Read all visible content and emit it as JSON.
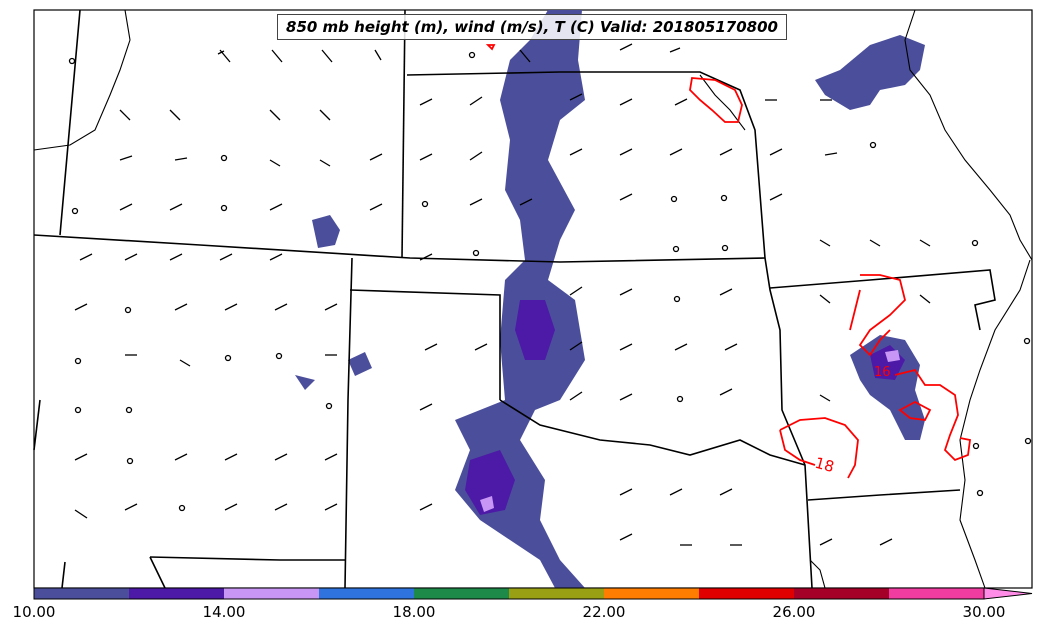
{
  "title": "850 mb height (m), wind (m/s), T (C) Valid: 201805170800",
  "contour_labels": [
    "18",
    "16"
  ],
  "colorbar": {
    "colors": [
      "#4b4f9b",
      "#4c1aa6",
      "#c896f5",
      "#2e73de",
      "#1e8a4a",
      "#9aa014",
      "#ff7d00",
      "#e10000",
      "#a50028",
      "#f03ca0",
      "#ff8ce6"
    ],
    "tick_labels": [
      "10.00",
      "14.00",
      "18.00",
      "22.00",
      "26.00",
      "30.00"
    ]
  },
  "colors": {
    "precip_fill": "#4b4f9b",
    "precip_core": "#4c1aa6",
    "temp_contour": "#ff0000",
    "boundaries": "#000000"
  }
}
